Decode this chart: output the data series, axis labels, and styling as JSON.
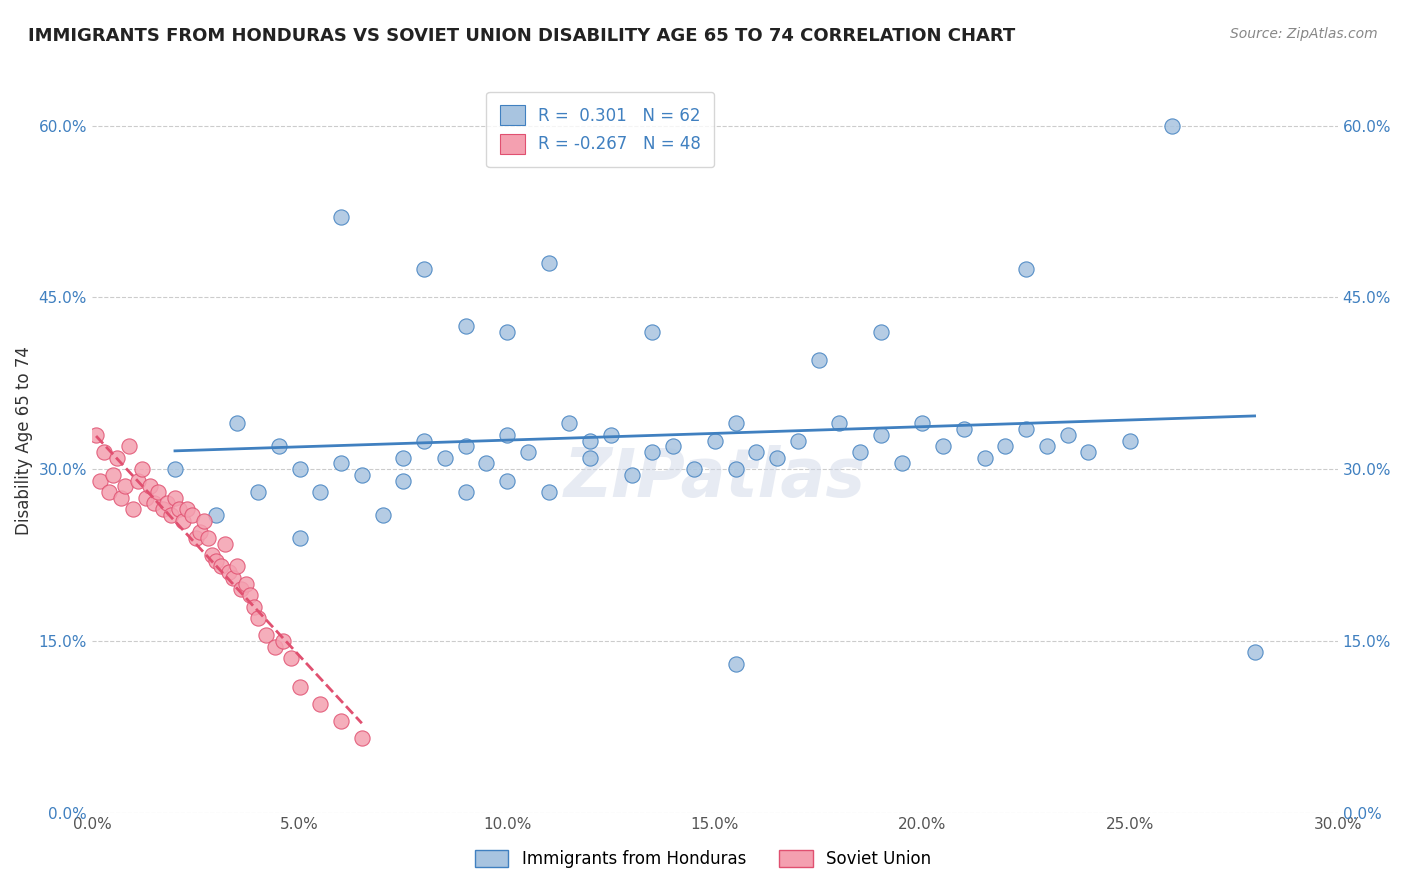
{
  "title": "IMMIGRANTS FROM HONDURAS VS SOVIET UNION DISABILITY AGE 65 TO 74 CORRELATION CHART",
  "source": "Source: ZipAtlas.com",
  "xlabel": "",
  "ylabel": "Disability Age 65 to 74",
  "xlim": [
    0.0,
    0.3
  ],
  "ylim": [
    0.0,
    0.65
  ],
  "xticks": [
    0.0,
    0.05,
    0.1,
    0.15,
    0.2,
    0.25,
    0.3
  ],
  "xticklabels": [
    "0.0%",
    "5.0%",
    "10.0%",
    "15.0%",
    "20.0%",
    "25.0%",
    "30.0%"
  ],
  "yticks": [
    0.0,
    0.15,
    0.3,
    0.45,
    0.6
  ],
  "yticklabels": [
    "0.0%",
    "15.0%",
    "30.0%",
    "45.0%",
    "60.0%"
  ],
  "legend_r1": "R =  0.301",
  "legend_n1": "N = 62",
  "legend_r2": "R = -0.267",
  "legend_n2": "N = 48",
  "honduras_color": "#a8c4e0",
  "soviet_color": "#f4a0b0",
  "trend_honduras_color": "#4080c0",
  "trend_soviet_color": "#e05070",
  "watermark": "ZIPatlas",
  "honduras_x": [
    0.02,
    0.03,
    0.035,
    0.04,
    0.045,
    0.05,
    0.05,
    0.055,
    0.06,
    0.065,
    0.07,
    0.075,
    0.075,
    0.08,
    0.085,
    0.09,
    0.09,
    0.095,
    0.1,
    0.1,
    0.105,
    0.11,
    0.115,
    0.12,
    0.12,
    0.125,
    0.13,
    0.135,
    0.14,
    0.145,
    0.15,
    0.155,
    0.155,
    0.16,
    0.165,
    0.17,
    0.18,
    0.185,
    0.19,
    0.195,
    0.2,
    0.205,
    0.21,
    0.215,
    0.22,
    0.225,
    0.23,
    0.235,
    0.24,
    0.25,
    0.06,
    0.08,
    0.09,
    0.1,
    0.11,
    0.135,
    0.155,
    0.175,
    0.19,
    0.225,
    0.26,
    0.28
  ],
  "honduras_y": [
    0.3,
    0.26,
    0.34,
    0.28,
    0.32,
    0.24,
    0.3,
    0.28,
    0.305,
    0.295,
    0.26,
    0.31,
    0.29,
    0.325,
    0.31,
    0.28,
    0.32,
    0.305,
    0.33,
    0.29,
    0.315,
    0.28,
    0.34,
    0.31,
    0.325,
    0.33,
    0.295,
    0.315,
    0.32,
    0.3,
    0.325,
    0.3,
    0.34,
    0.315,
    0.31,
    0.325,
    0.34,
    0.315,
    0.33,
    0.305,
    0.34,
    0.32,
    0.335,
    0.31,
    0.32,
    0.335,
    0.32,
    0.33,
    0.315,
    0.325,
    0.52,
    0.475,
    0.425,
    0.42,
    0.48,
    0.42,
    0.13,
    0.395,
    0.42,
    0.475,
    0.6,
    0.14
  ],
  "soviet_x": [
    0.001,
    0.002,
    0.003,
    0.004,
    0.005,
    0.006,
    0.007,
    0.008,
    0.009,
    0.01,
    0.011,
    0.012,
    0.013,
    0.014,
    0.015,
    0.016,
    0.017,
    0.018,
    0.019,
    0.02,
    0.021,
    0.022,
    0.023,
    0.024,
    0.025,
    0.026,
    0.027,
    0.028,
    0.029,
    0.03,
    0.031,
    0.032,
    0.033,
    0.034,
    0.035,
    0.036,
    0.037,
    0.038,
    0.039,
    0.04,
    0.042,
    0.044,
    0.046,
    0.048,
    0.05,
    0.055,
    0.06,
    0.065
  ],
  "soviet_y": [
    0.33,
    0.29,
    0.315,
    0.28,
    0.295,
    0.31,
    0.275,
    0.285,
    0.32,
    0.265,
    0.29,
    0.3,
    0.275,
    0.285,
    0.27,
    0.28,
    0.265,
    0.27,
    0.26,
    0.275,
    0.265,
    0.255,
    0.265,
    0.26,
    0.24,
    0.245,
    0.255,
    0.24,
    0.225,
    0.22,
    0.215,
    0.235,
    0.21,
    0.205,
    0.215,
    0.195,
    0.2,
    0.19,
    0.18,
    0.17,
    0.155,
    0.145,
    0.15,
    0.135,
    0.11,
    0.095,
    0.08,
    0.065
  ]
}
